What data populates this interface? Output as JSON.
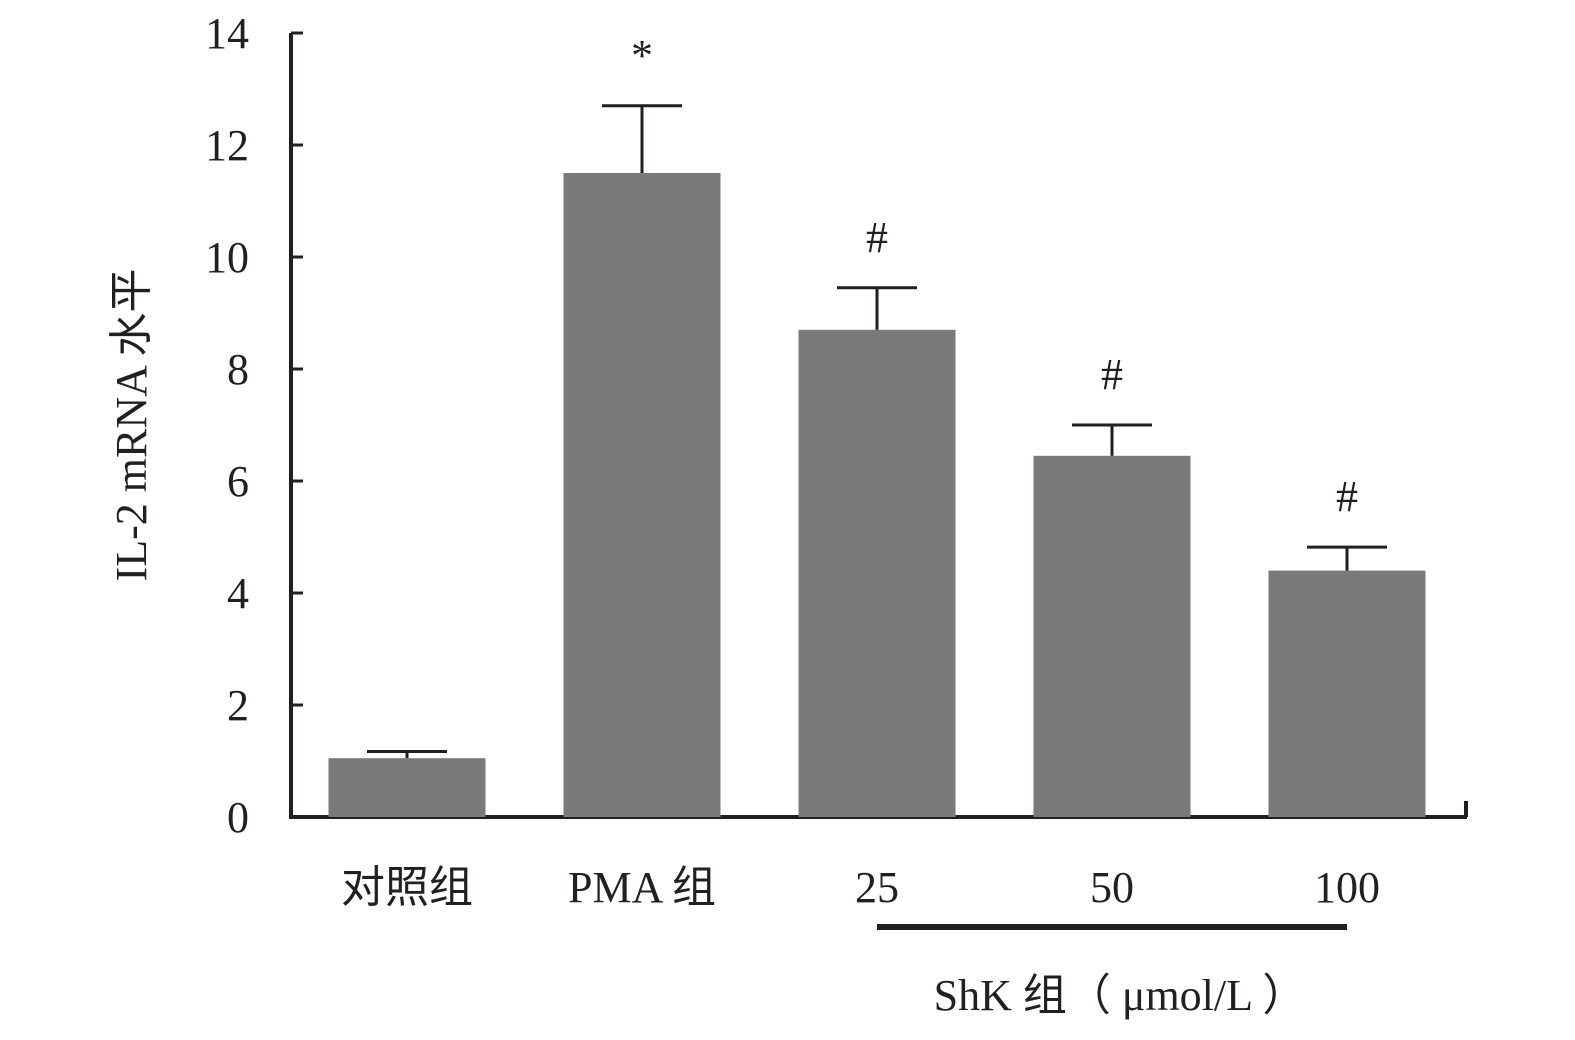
{
  "chart_data": {
    "type": "bar",
    "title": "",
    "xlabel": "",
    "ylabel": "IL-2 mRNA 水平",
    "ylim": [
      0,
      14
    ],
    "yticks": [
      0,
      2,
      4,
      6,
      8,
      10,
      12,
      14
    ],
    "grid": false,
    "categories": [
      "对照组",
      "PMA 组",
      "25",
      "50",
      "100"
    ],
    "values": [
      1.05,
      11.5,
      8.7,
      6.45,
      4.4
    ],
    "errors": [
      0.12,
      1.2,
      0.75,
      0.55,
      0.42
    ],
    "significance": [
      "",
      "*",
      "#",
      "#",
      "#"
    ],
    "bar_color": "#7b797a",
    "group_bracket": {
      "label": "ShK 组（ μmol/L ）",
      "categories": [
        "25",
        "50",
        "100"
      ]
    }
  }
}
